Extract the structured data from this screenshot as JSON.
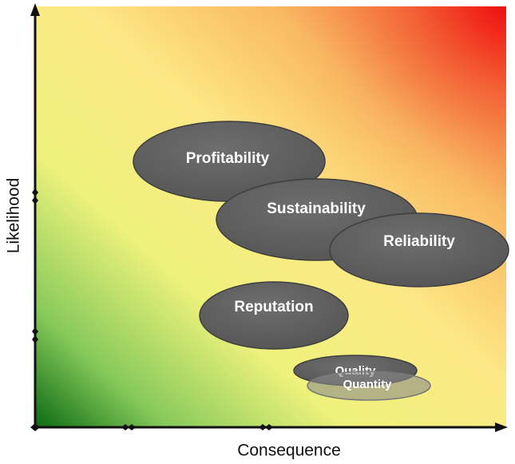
{
  "axes": {
    "y_label": "Likelihood",
    "x_label": "Consequence"
  },
  "nodes": [
    {
      "label": "Profitability"
    },
    {
      "label": "Sustainability"
    },
    {
      "label": "Reliability"
    },
    {
      "label": "Reputation"
    },
    {
      "label": "Quality"
    },
    {
      "label": "Quantity"
    }
  ]
}
